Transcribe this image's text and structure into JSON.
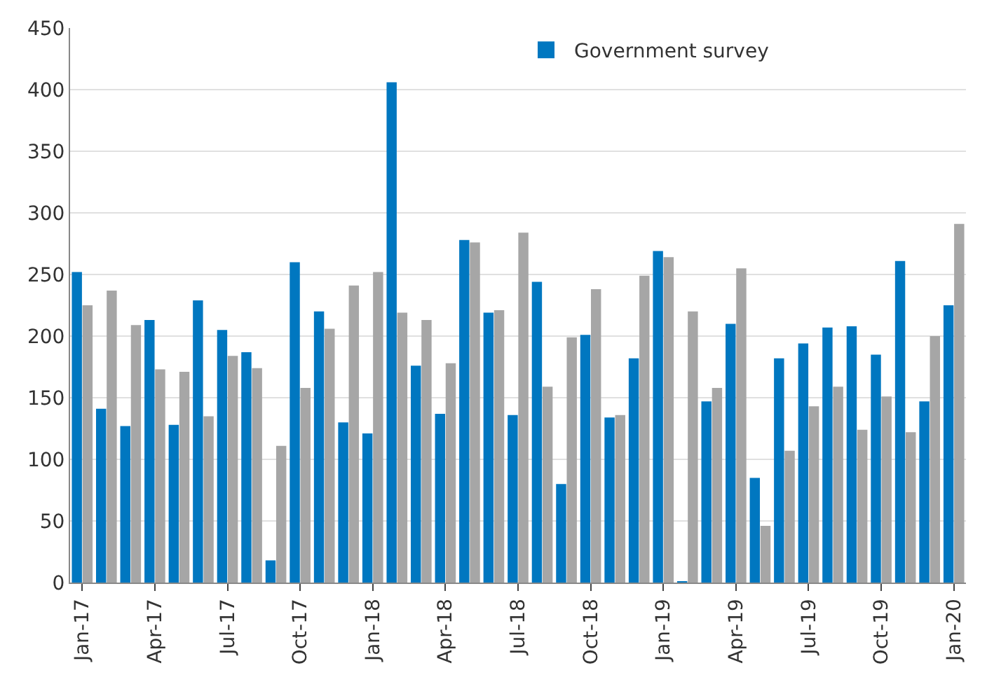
{
  "chart_data": {
    "type": "bar",
    "categories": [
      "Jan-17",
      null,
      null,
      "Apr-17",
      null,
      null,
      "Jul-17",
      null,
      null,
      "Oct-17",
      null,
      null,
      "Jan-18",
      null,
      null,
      "Apr-18",
      null,
      null,
      "Jul-18",
      null,
      null,
      "Oct-18",
      null,
      null,
      "Jan-19",
      null,
      null,
      "Apr-19",
      null,
      null,
      "Jul-19",
      null,
      null,
      "Oct-19",
      null,
      null,
      "Jan-20"
    ],
    "series": [
      {
        "name": "Government survey",
        "color": "#0077c0",
        "values": [
          252,
          141,
          127,
          213,
          128,
          229,
          205,
          187,
          18,
          260,
          220,
          130,
          121,
          406,
          176,
          137,
          278,
          219,
          136,
          244,
          80,
          201,
          134,
          182,
          269,
          1,
          147,
          210,
          85,
          182,
          194,
          207,
          208,
          185,
          261,
          147,
          225
        ]
      },
      {
        "color": "#a6a6a6",
        "values": [
          225,
          237,
          209,
          173,
          171,
          135,
          184,
          174,
          111,
          158,
          206,
          241,
          252,
          219,
          213,
          178,
          276,
          221,
          284,
          159,
          199,
          238,
          136,
          249,
          264,
          220,
          158,
          255,
          46,
          107,
          143,
          159,
          124,
          151,
          122,
          200,
          291
        ]
      }
    ],
    "ylim": [
      0,
      450
    ],
    "yticks": [
      0,
      50,
      100,
      150,
      200,
      250,
      300,
      350,
      400,
      450
    ],
    "grid": "y",
    "legend": "top"
  }
}
